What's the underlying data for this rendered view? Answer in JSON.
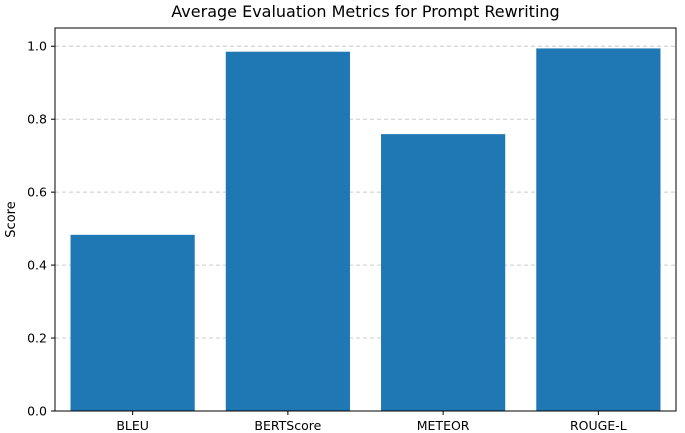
{
  "chart_data": {
    "type": "bar",
    "title": "Average Evaluation Metrics for Prompt Rewriting",
    "xlabel": "",
    "ylabel": "Score",
    "categories": [
      "BLEU",
      "BERTScore",
      "METEOR",
      "ROUGE-L"
    ],
    "values": [
      0.483,
      0.985,
      0.759,
      0.994
    ],
    "ylim": [
      0,
      1.05
    ],
    "yticks": [
      0.0,
      0.2,
      0.4,
      0.6,
      0.8,
      1.0
    ],
    "ytick_labels": [
      "0.0",
      "0.2",
      "0.4",
      "0.6",
      "0.8",
      "1.0"
    ],
    "grid": "y-dashed",
    "bar_color": "#1f77b4",
    "grid_color": "#cccccc"
  }
}
